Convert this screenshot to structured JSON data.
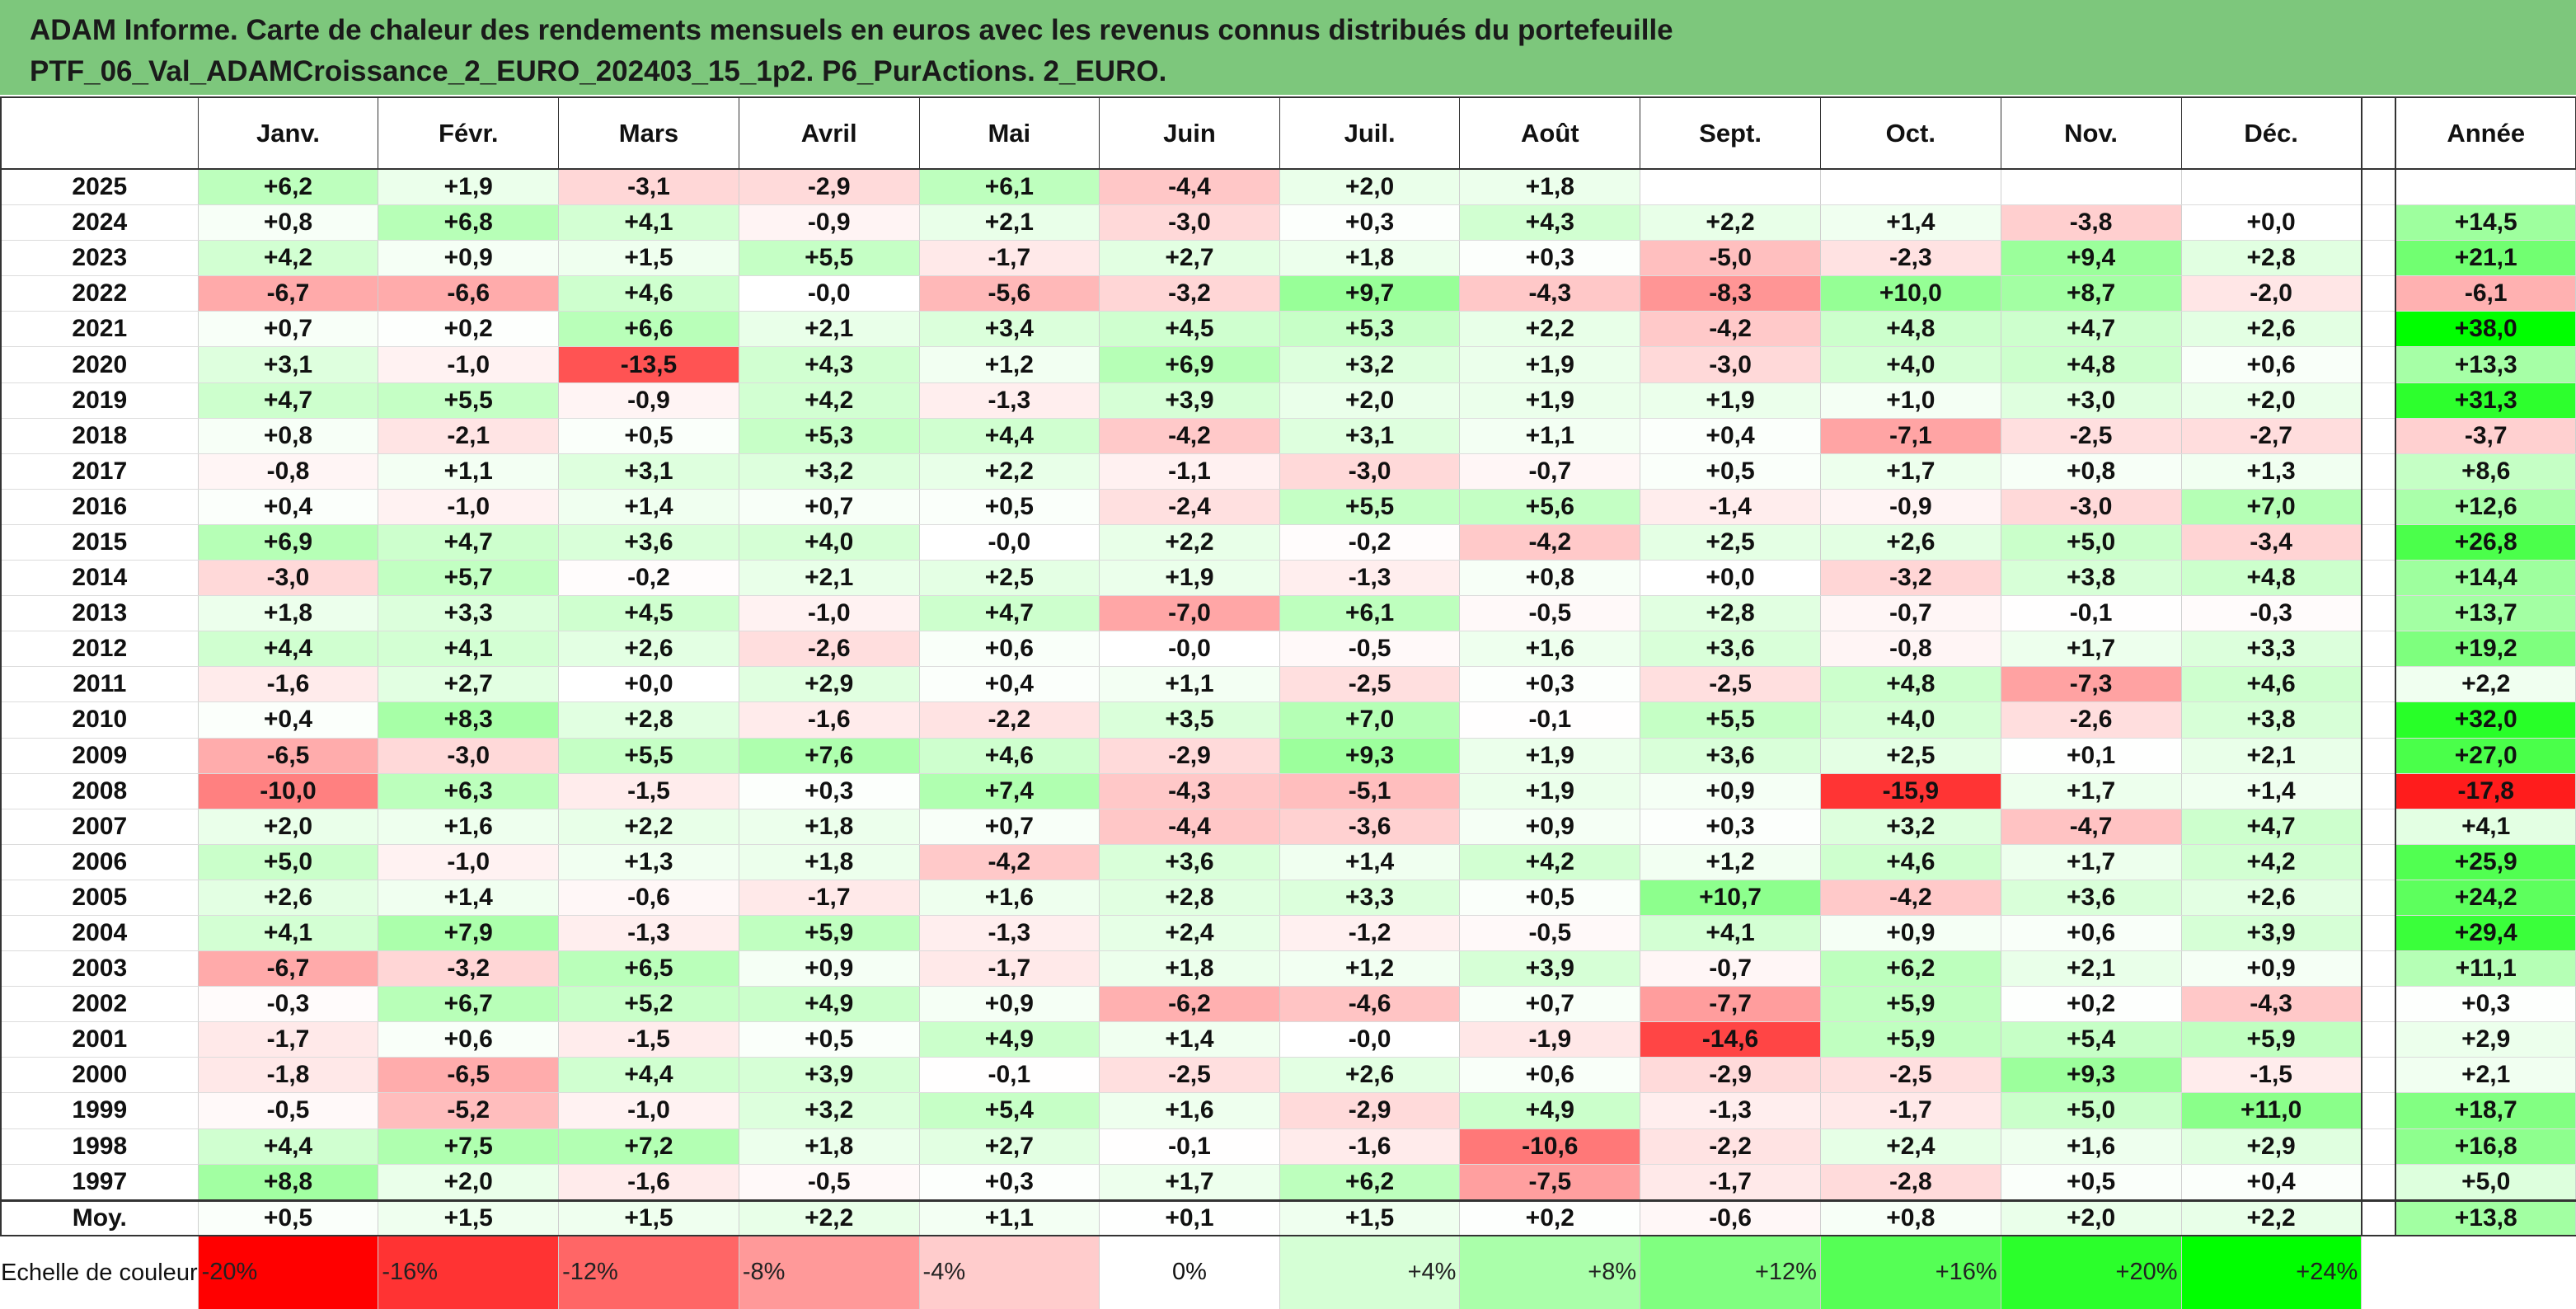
{
  "title": {
    "line1": "ADAM Informe. Carte de chaleur des rendements mensuels en euros avec les revenus connus distribués du portefeuille",
    "line2": "PTF_06_Val_ADAMCroissance_2_EURO_202403_15_1p2. P6_PurActions. 2_EURO."
  },
  "colors": {
    "title_bg": "#7dc77c",
    "neg_max": "#ff0000",
    "pos_max": "#00ff00",
    "neutral": "#ffffff"
  },
  "chart_data": {
    "type": "heatmap",
    "columns": [
      "Janv.",
      "Févr.",
      "Mars",
      "Avril",
      "Mai",
      "Juin",
      "Juil.",
      "Août",
      "Sept.",
      "Oct.",
      "Nov.",
      "Déc."
    ],
    "annual_header": "Année",
    "rows": [
      {
        "year": "2025",
        "values": [
          "+6,2",
          "+1,9",
          "-3,1",
          "-2,9",
          "+6,1",
          "-4,4",
          "+2,0",
          "+1,8",
          "",
          "",
          "",
          ""
        ],
        "annual": ""
      },
      {
        "year": "2024",
        "values": [
          "+0,8",
          "+6,8",
          "+4,1",
          "-0,9",
          "+2,1",
          "-3,0",
          "+0,3",
          "+4,3",
          "+2,2",
          "+1,4",
          "-3,8",
          "+0,0"
        ],
        "annual": "+14,5"
      },
      {
        "year": "2023",
        "values": [
          "+4,2",
          "+0,9",
          "+1,5",
          "+5,5",
          "-1,7",
          "+2,7",
          "+1,8",
          "+0,3",
          "-5,0",
          "-2,3",
          "+9,4",
          "+2,8"
        ],
        "annual": "+21,1"
      },
      {
        "year": "2022",
        "values": [
          "-6,7",
          "-6,6",
          "+4,6",
          "-0,0",
          "-5,6",
          "-3,2",
          "+9,7",
          "-4,3",
          "-8,3",
          "+10,0",
          "+8,7",
          "-2,0"
        ],
        "annual": "-6,1"
      },
      {
        "year": "2021",
        "values": [
          "+0,7",
          "+0,2",
          "+6,6",
          "+2,1",
          "+3,4",
          "+4,5",
          "+5,3",
          "+2,2",
          "-4,2",
          "+4,8",
          "+4,7",
          "+2,6"
        ],
        "annual": "+38,0"
      },
      {
        "year": "2020",
        "values": [
          "+3,1",
          "-1,0",
          "-13,5",
          "+4,3",
          "+1,2",
          "+6,9",
          "+3,2",
          "+1,9",
          "-3,0",
          "+4,0",
          "+4,8",
          "+0,6"
        ],
        "annual": "+13,3"
      },
      {
        "year": "2019",
        "values": [
          "+4,7",
          "+5,5",
          "-0,9",
          "+4,2",
          "-1,3",
          "+3,9",
          "+2,0",
          "+1,9",
          "+1,9",
          "+1,0",
          "+3,0",
          "+2,0"
        ],
        "annual": "+31,3"
      },
      {
        "year": "2018",
        "values": [
          "+0,8",
          "-2,1",
          "+0,5",
          "+5,3",
          "+4,4",
          "-4,2",
          "+3,1",
          "+1,1",
          "+0,4",
          "-7,1",
          "-2,5",
          "-2,7"
        ],
        "annual": "-3,7"
      },
      {
        "year": "2017",
        "values": [
          "-0,8",
          "+1,1",
          "+3,1",
          "+3,2",
          "+2,2",
          "-1,1",
          "-3,0",
          "-0,7",
          "+0,5",
          "+1,7",
          "+0,8",
          "+1,3"
        ],
        "annual": "+8,6"
      },
      {
        "year": "2016",
        "values": [
          "+0,4",
          "-1,0",
          "+1,4",
          "+0,7",
          "+0,5",
          "-2,4",
          "+5,5",
          "+5,6",
          "-1,4",
          "-0,9",
          "-3,0",
          "+7,0"
        ],
        "annual": "+12,6"
      },
      {
        "year": "2015",
        "values": [
          "+6,9",
          "+4,7",
          "+3,6",
          "+4,0",
          "-0,0",
          "+2,2",
          "-0,2",
          "-4,2",
          "+2,5",
          "+2,6",
          "+5,0",
          "-3,4"
        ],
        "annual": "+26,8"
      },
      {
        "year": "2014",
        "values": [
          "-3,0",
          "+5,7",
          "-0,2",
          "+2,1",
          "+2,5",
          "+1,9",
          "-1,3",
          "+0,8",
          "+0,0",
          "-3,2",
          "+3,8",
          "+4,8"
        ],
        "annual": "+14,4"
      },
      {
        "year": "2013",
        "values": [
          "+1,8",
          "+3,3",
          "+4,5",
          "-1,0",
          "+4,7",
          "-7,0",
          "+6,1",
          "-0,5",
          "+2,8",
          "-0,7",
          "-0,1",
          "-0,3"
        ],
        "annual": "+13,7"
      },
      {
        "year": "2012",
        "values": [
          "+4,4",
          "+4,1",
          "+2,6",
          "-2,6",
          "+0,6",
          "-0,0",
          "-0,5",
          "+1,6",
          "+3,6",
          "-0,8",
          "+1,7",
          "+3,3"
        ],
        "annual": "+19,2"
      },
      {
        "year": "2011",
        "values": [
          "-1,6",
          "+2,7",
          "+0,0",
          "+2,9",
          "+0,4",
          "+1,1",
          "-2,5",
          "+0,3",
          "-2,5",
          "+4,8",
          "-7,3",
          "+4,6"
        ],
        "annual": "+2,2"
      },
      {
        "year": "2010",
        "values": [
          "+0,4",
          "+8,3",
          "+2,8",
          "-1,6",
          "-2,2",
          "+3,5",
          "+7,0",
          "-0,1",
          "+5,5",
          "+4,0",
          "-2,6",
          "+3,8"
        ],
        "annual": "+32,0"
      },
      {
        "year": "2009",
        "values": [
          "-6,5",
          "-3,0",
          "+5,5",
          "+7,6",
          "+4,6",
          "-2,9",
          "+9,3",
          "+1,9",
          "+3,6",
          "+2,5",
          "+0,1",
          "+2,1"
        ],
        "annual": "+27,0"
      },
      {
        "year": "2008",
        "values": [
          "-10,0",
          "+6,3",
          "-1,5",
          "+0,3",
          "+7,4",
          "-4,3",
          "-5,1",
          "+1,9",
          "+0,9",
          "-15,9",
          "+1,7",
          "+1,4"
        ],
        "annual": "-17,8"
      },
      {
        "year": "2007",
        "values": [
          "+2,0",
          "+1,6",
          "+2,2",
          "+1,8",
          "+0,7",
          "-4,4",
          "-3,6",
          "+0,9",
          "+0,3",
          "+3,2",
          "-4,7",
          "+4,7"
        ],
        "annual": "+4,1"
      },
      {
        "year": "2006",
        "values": [
          "+5,0",
          "-1,0",
          "+1,3",
          "+1,8",
          "-4,2",
          "+3,6",
          "+1,4",
          "+4,2",
          "+1,2",
          "+4,6",
          "+1,7",
          "+4,2"
        ],
        "annual": "+25,9"
      },
      {
        "year": "2005",
        "values": [
          "+2,6",
          "+1,4",
          "-0,6",
          "-1,7",
          "+1,6",
          "+2,8",
          "+3,3",
          "+0,5",
          "+10,7",
          "-4,2",
          "+3,6",
          "+2,6"
        ],
        "annual": "+24,2"
      },
      {
        "year": "2004",
        "values": [
          "+4,1",
          "+7,9",
          "-1,3",
          "+5,9",
          "-1,3",
          "+2,4",
          "-1,2",
          "-0,5",
          "+4,1",
          "+0,9",
          "+0,6",
          "+3,9"
        ],
        "annual": "+29,4"
      },
      {
        "year": "2003",
        "values": [
          "-6,7",
          "-3,2",
          "+6,5",
          "+0,9",
          "-1,7",
          "+1,8",
          "+1,2",
          "+3,9",
          "-0,7",
          "+6,2",
          "+2,1",
          "+0,9"
        ],
        "annual": "+11,1"
      },
      {
        "year": "2002",
        "values": [
          "-0,3",
          "+6,7",
          "+5,2",
          "+4,9",
          "+0,9",
          "-6,2",
          "-4,6",
          "+0,7",
          "-7,7",
          "+5,9",
          "+0,2",
          "-4,3"
        ],
        "annual": "+0,3"
      },
      {
        "year": "2001",
        "values": [
          "-1,7",
          "+0,6",
          "-1,5",
          "+0,5",
          "+4,9",
          "+1,4",
          "-0,0",
          "-1,9",
          "-14,6",
          "+5,9",
          "+5,4",
          "+5,9"
        ],
        "annual": "+2,9"
      },
      {
        "year": "2000",
        "values": [
          "-1,8",
          "-6,5",
          "+4,4",
          "+3,9",
          "-0,1",
          "-2,5",
          "+2,6",
          "+0,6",
          "-2,9",
          "-2,5",
          "+9,3",
          "-1,5"
        ],
        "annual": "+2,1"
      },
      {
        "year": "1999",
        "values": [
          "-0,5",
          "-5,2",
          "-1,0",
          "+3,2",
          "+5,4",
          "+1,6",
          "-2,9",
          "+4,9",
          "-1,3",
          "-1,7",
          "+5,0",
          "+11,0"
        ],
        "annual": "+18,7"
      },
      {
        "year": "1998",
        "values": [
          "+4,4",
          "+7,5",
          "+7,2",
          "+1,8",
          "+2,7",
          "-0,1",
          "-1,6",
          "-10,6",
          "-2,2",
          "+2,4",
          "+1,6",
          "+2,9"
        ],
        "annual": "+16,8"
      },
      {
        "year": "1997",
        "values": [
          "+8,8",
          "+2,0",
          "-1,6",
          "-0,5",
          "+0,3",
          "+1,7",
          "+6,2",
          "-7,5",
          "-1,7",
          "-2,8",
          "+0,5",
          "+0,4"
        ],
        "annual": "+5,0"
      }
    ],
    "average": {
      "label": "Moy.",
      "values": [
        "+0,5",
        "+1,5",
        "+1,5",
        "+2,2",
        "+1,1",
        "+0,1",
        "+1,5",
        "+0,2",
        "-0,6",
        "+0,8",
        "+2,0",
        "+2,2"
      ],
      "annual": "+13,8"
    },
    "scale": {
      "label": "Echelle de couleur",
      "steps": [
        "-20%",
        "-16%",
        "-12%",
        "-8%",
        "-4%",
        "0%",
        "+4%",
        "+8%",
        "+12%",
        "+16%",
        "+20%",
        "+24%"
      ],
      "step_values": [
        -20,
        -16,
        -12,
        -8,
        -4,
        0,
        4,
        8,
        12,
        16,
        20,
        24
      ]
    }
  }
}
